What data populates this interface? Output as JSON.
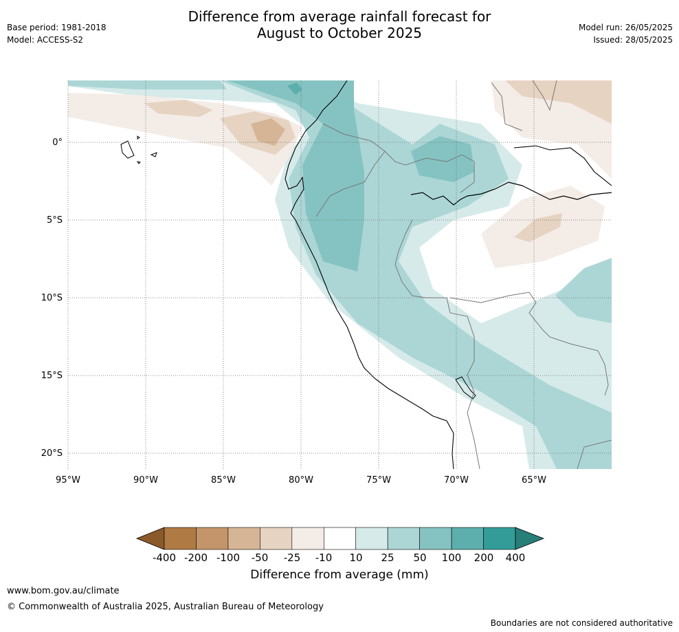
{
  "header": {
    "title_line1": "Difference from average rainfall forecast for",
    "title_line2": "August to October 2025",
    "base_period": "Base period: 1981-2018",
    "model": "Model: ACCESS-S2",
    "model_run": "Model run: 26/05/2025",
    "issued": "Issued: 28/05/2025"
  },
  "map": {
    "lon_labels": [
      "95°W",
      "90°W",
      "85°W",
      "80°W",
      "75°W",
      "70°W",
      "65°W"
    ],
    "lat_labels": [
      "0°",
      "5°S",
      "10°S",
      "15°S",
      "20°S"
    ]
  },
  "colorbar": {
    "ticks": [
      "-400",
      "-200",
      "-100",
      "-50",
      "-25",
      "-10",
      "10",
      "25",
      "50",
      "100",
      "200",
      "400"
    ],
    "colors": [
      "#8b5a2b",
      "#b07a44",
      "#c4956a",
      "#d6b596",
      "#e6d3c1",
      "#f4ece6",
      "#ffffff",
      "#d6eaea",
      "#acd6d6",
      "#85c3c2",
      "#5dafad",
      "#339c98",
      "#287e79"
    ],
    "label": "Difference from average (mm)"
  },
  "footer": {
    "url": "www.bom.gov.au/climate",
    "copyright": "© Commonwealth of Australia 2025, Australian Bureau of Meteorology",
    "note": "Boundaries are not considered authoritative"
  }
}
